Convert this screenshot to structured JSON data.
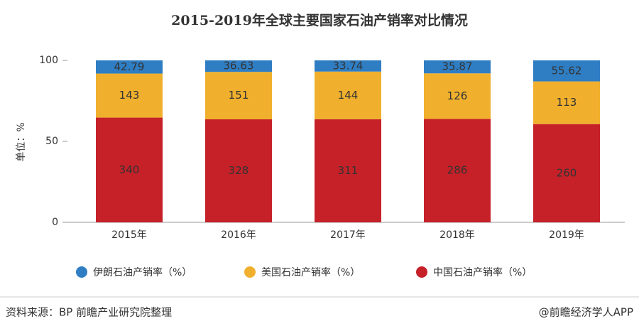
{
  "chart_data": {
    "type": "bar",
    "stacking": "percent",
    "title": "2015-2019年全球主要国家石油产销率对比情况",
    "y_label": "单位：%",
    "categories": [
      "2015年",
      "2016年",
      "2017年",
      "2018年",
      "2019年"
    ],
    "series": [
      {
        "name": "伊朗石油产销率（%）",
        "color": "#2f7ec4",
        "label_color": "#ffffff",
        "values": [
          42.79,
          36.63,
          33.74,
          35.87,
          55.62
        ]
      },
      {
        "name": "美国石油产销率（%）",
        "color": "#f0b02d",
        "label_color": "#333333",
        "values": [
          143,
          151,
          144,
          126,
          113
        ]
      },
      {
        "name": "中国石油产销率（%）",
        "color": "#c62128",
        "label_color": "#ffffff",
        "values": [
          340,
          328,
          311,
          286,
          260
        ]
      }
    ],
    "ylim": [
      0,
      100
    ],
    "yticks": [
      0,
      50,
      100
    ],
    "grid": false
  },
  "footer": {
    "source": "资料来源：BP 前瞻产业研究院整理",
    "credit": "@前瞻经济学人APP"
  }
}
